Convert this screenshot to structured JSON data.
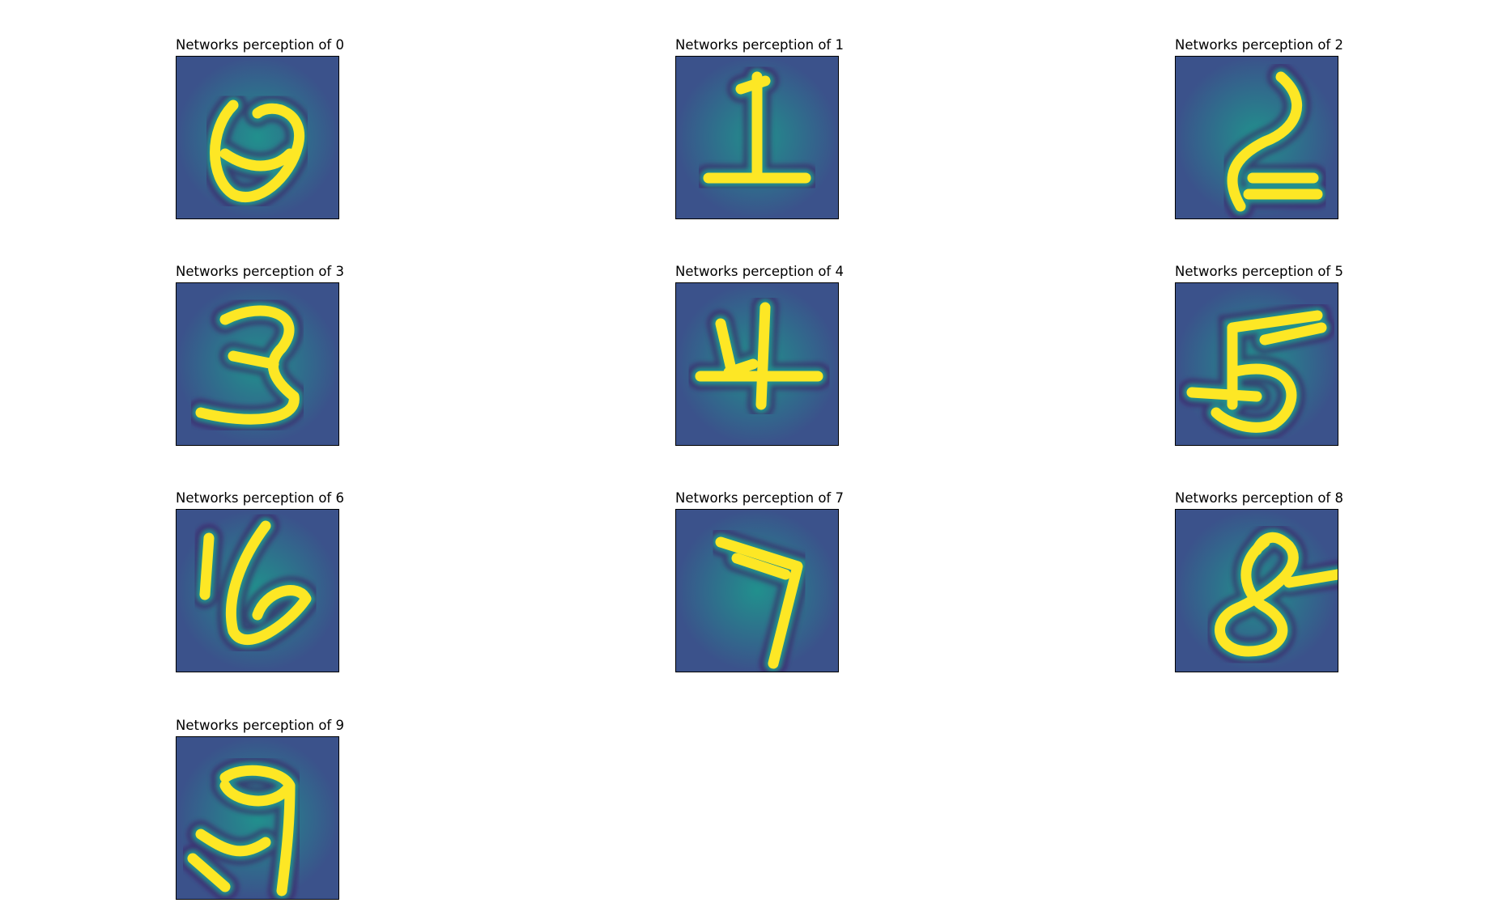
{
  "chart_data": [
    {
      "type": "heatmap",
      "title": "Networks perception of 0",
      "digit": 0,
      "grid": false,
      "colormap": "viridis"
    },
    {
      "type": "heatmap",
      "title": "Networks perception of 1",
      "digit": 1,
      "grid": false,
      "colormap": "viridis"
    },
    {
      "type": "heatmap",
      "title": "Networks perception of 2",
      "digit": 2,
      "grid": false,
      "colormap": "viridis"
    },
    {
      "type": "heatmap",
      "title": "Networks perception of 3",
      "digit": 3,
      "grid": false,
      "colormap": "viridis"
    },
    {
      "type": "heatmap",
      "title": "Networks perception of 4",
      "digit": 4,
      "grid": false,
      "colormap": "viridis"
    },
    {
      "type": "heatmap",
      "title": "Networks perception of 5",
      "digit": 5,
      "grid": false,
      "colormap": "viridis"
    },
    {
      "type": "heatmap",
      "title": "Networks perception of 6",
      "digit": 6,
      "grid": false,
      "colormap": "viridis"
    },
    {
      "type": "heatmap",
      "title": "Networks perception of 7",
      "digit": 7,
      "grid": false,
      "colormap": "viridis"
    },
    {
      "type": "heatmap",
      "title": "Networks perception of 8",
      "digit": 8,
      "grid": false,
      "colormap": "viridis"
    },
    {
      "type": "heatmap",
      "title": "Networks perception of 9",
      "digit": 9,
      "grid": false,
      "colormap": "viridis"
    }
  ],
  "colors": {
    "background": "#3b528b",
    "mid": "#21908d",
    "highlight": "#fde725",
    "dark": "#440154"
  }
}
